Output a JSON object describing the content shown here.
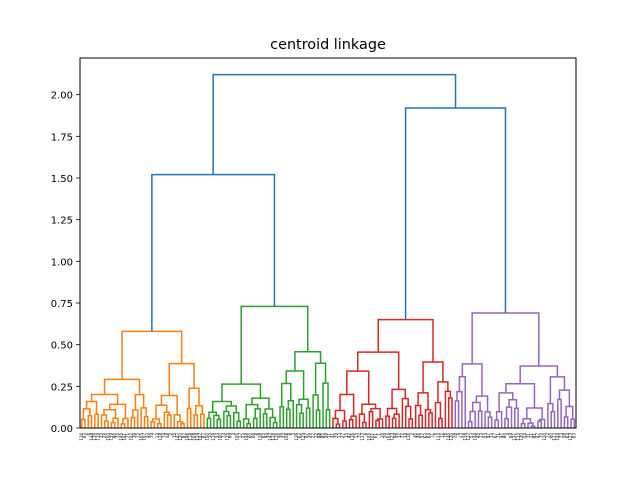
{
  "chart_data": {
    "type": "dendrogram",
    "title": "centroid linkage",
    "xlabel": "",
    "ylabel": "",
    "ylim": [
      0,
      2.22
    ],
    "yticks": [
      "0.00",
      "0.25",
      "0.50",
      "0.75",
      "1.00",
      "1.25",
      "1.50",
      "1.75",
      "2.00"
    ],
    "grid": false,
    "link_color_above_threshold": "#1f77b4",
    "top_merges": [
      {
        "height": 2.12,
        "joins": [
          "left group",
          "right group"
        ]
      },
      {
        "height": 1.52,
        "joins": [
          "orange cluster",
          "green cluster"
        ]
      },
      {
        "height": 1.92,
        "joins": [
          "red cluster",
          "purple cluster"
        ]
      }
    ],
    "clusters": [
      {
        "color": "#ff7f0e",
        "root_height": 0.58,
        "leaf_count": 38
      },
      {
        "color": "#2ca02c",
        "root_height": 0.73,
        "leaf_count": 38
      },
      {
        "color": "#d62728",
        "root_height": 0.65,
        "leaf_count": 37
      },
      {
        "color": "#9467bd",
        "root_height": 0.69,
        "leaf_count": 37
      }
    ],
    "leaf_count": 150
  }
}
